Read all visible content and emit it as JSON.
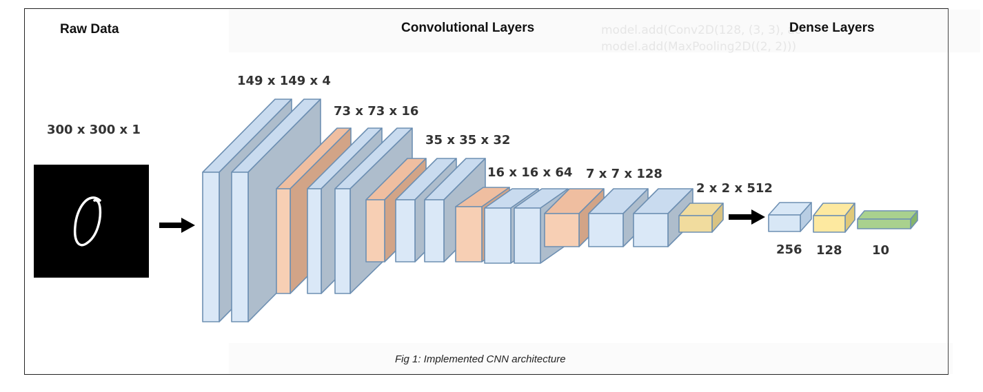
{
  "section_titles": {
    "raw": "Raw Data",
    "conv": "Convolutional Layers",
    "dense": "Dense Layers"
  },
  "input_dim": "300 x 300 x 1",
  "conv_dims": [
    "149 x 149 x 4",
    "73 x 73 x 16",
    "35 x 35 x 32",
    "16 x 16 x 64",
    "7 x 7 x 128",
    "2 x 2 x 512"
  ],
  "dense_units": [
    "256",
    "128",
    "10"
  ],
  "caption": "Fig 1: Implemented CNN architecture",
  "background_text": [
    "model.add(Conv2D(128, (3, 3), ac",
    "model.add(MaxPooling2D((2, 2)))"
  ],
  "input_digit": "0",
  "colors": {
    "conv_face": "#dae8f7",
    "conv_top": "#c9dbef",
    "conv_side": "#aebdcc",
    "pool_face": "#f7cfb4",
    "pool_top": "#efbea0",
    "pool_side": "#d2a487",
    "outline": "#6d8fb2",
    "flat_face": "#f1dc9e",
    "flat_side": "#d9c382",
    "dense256_face": "#d8e7f6",
    "dense128_face": "#fde9a0",
    "dense10_face": "#a9d18e"
  }
}
